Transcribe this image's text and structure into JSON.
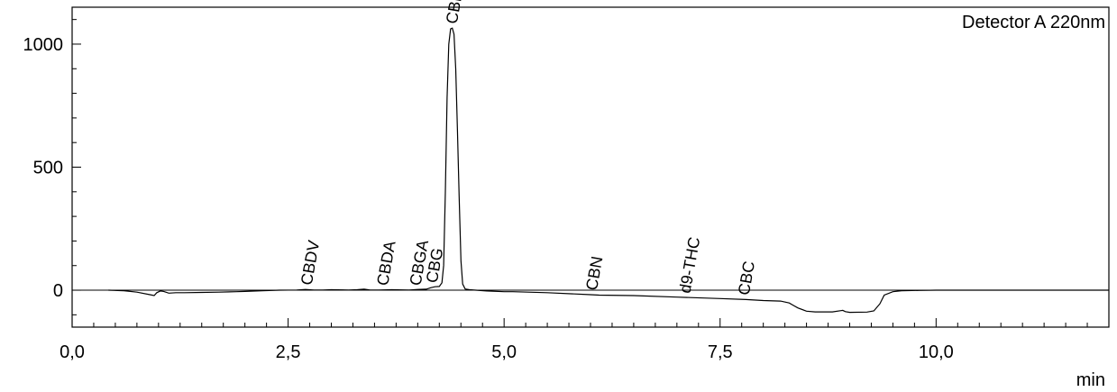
{
  "chart_data": {
    "type": "line",
    "title": "",
    "detector_label": "Detector A 220nm",
    "xlabel": "min",
    "ylabel": "",
    "xlim": [
      0.0,
      12.0
    ],
    "ylim": [
      -150,
      1150
    ],
    "grid": false,
    "x_ticks": [
      0,
      2.5,
      5.0,
      7.5,
      10.0
    ],
    "x_tick_labels": [
      "0,0",
      "2,5",
      "5,0",
      "7,5",
      "10,0"
    ],
    "x_minor_step": 0.25,
    "y_ticks": [
      0,
      500,
      1000
    ],
    "y_tick_labels": [
      "0",
      "500",
      "1000"
    ],
    "y_minor_step": 100,
    "peaks": [
      {
        "name": "CBDV",
        "x": 2.72,
        "y": 3
      },
      {
        "name": "CBDA",
        "x": 3.6,
        "y": 1
      },
      {
        "name": "CBGA",
        "x": 3.98,
        "y": 1
      },
      {
        "name": "CBG",
        "x": 4.17,
        "y": 12
      },
      {
        "name": "CBD",
        "x": 4.4,
        "y": 1065
      },
      {
        "name": "CBN",
        "x": 6.02,
        "y": -18
      },
      {
        "name": "d9-THC",
        "x": 7.1,
        "y": -30
      },
      {
        "name": "CBC",
        "x": 7.78,
        "y": -38
      }
    ],
    "series": [
      {
        "x": [
          0.42,
          0.6,
          0.75,
          0.9,
          0.95,
          0.98,
          1.02,
          1.06,
          1.12,
          1.2,
          1.3,
          1.5,
          1.7,
          1.9,
          2.0,
          2.2,
          2.4,
          2.6,
          2.7,
          2.8,
          2.9,
          3.0,
          3.2,
          3.3,
          3.38,
          3.45,
          3.55,
          3.7,
          3.9,
          4.0,
          4.1,
          4.15,
          4.2,
          4.25,
          4.28,
          4.3,
          4.32,
          4.34,
          4.36,
          4.38,
          4.4,
          4.42,
          4.44,
          4.46,
          4.48,
          4.5,
          4.52,
          4.55,
          4.6,
          4.8,
          5.0,
          5.1,
          5.5,
          6.0,
          6.1,
          6.5,
          7.0,
          7.5,
          7.8,
          8.0,
          8.2,
          8.3,
          8.35,
          8.4,
          8.5,
          8.6,
          8.8,
          8.9,
          8.92,
          8.95,
          9.0,
          9.2,
          9.28,
          9.35,
          9.4,
          9.5,
          9.6,
          9.8,
          10.0,
          11.0,
          12.0
        ],
        "y": [
          0,
          -2,
          -8,
          -18,
          -22,
          -10,
          -3,
          -5,
          -12,
          -10,
          -10,
          -9,
          -8,
          -6,
          -5,
          -2,
          0,
          1,
          3,
          1,
          1,
          2,
          1,
          2,
          4,
          1,
          1,
          2,
          1,
          3,
          4,
          10,
          14,
          15,
          30,
          100,
          400,
          780,
          1000,
          1062,
          1065,
          1040,
          900,
          650,
          380,
          120,
          25,
          5,
          2,
          -3,
          -6,
          -6,
          -10,
          -18,
          -20,
          -22,
          -28,
          -34,
          -38,
          -42,
          -44,
          -52,
          -62,
          -72,
          -85,
          -88,
          -88,
          -83,
          -82,
          -87,
          -90,
          -89,
          -84,
          -55,
          -20,
          -6,
          -2,
          -1,
          0,
          0,
          0
        ]
      }
    ]
  }
}
